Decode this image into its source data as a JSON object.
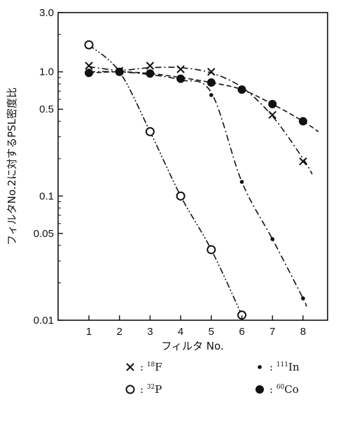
{
  "chart_data": {
    "type": "line",
    "xlabel": "フィルタ No.",
    "ylabel": "フィルタNo.2に対するPSL密度比",
    "y_scale": "log",
    "ylim": [
      0.01,
      3.0
    ],
    "xlim": [
      0.5,
      8.8
    ],
    "x_ticks": [
      "1",
      "2",
      "3",
      "4",
      "5",
      "6",
      "7",
      "8"
    ],
    "y_ticks": [
      {
        "value": 3.0,
        "label": "3.0"
      },
      {
        "value": 1.0,
        "label": "1.0"
      },
      {
        "value": 0.5,
        "label": "0.5"
      },
      {
        "value": 0.1,
        "label": "0.1"
      },
      {
        "value": 0.05,
        "label": "0.05"
      },
      {
        "value": 0.01,
        "label": "0.01"
      }
    ],
    "grid": false,
    "legend_position": "bottom",
    "series": [
      {
        "name": "18F",
        "legend_mass": "18",
        "legend_symbol": "F",
        "marker": "cross",
        "line_style": "dash-dot",
        "points": [
          [
            1,
            1.12
          ],
          [
            2,
            1.02
          ],
          [
            3,
            1.12
          ],
          [
            4,
            1.05
          ],
          [
            5,
            1.0
          ],
          [
            7,
            0.45
          ],
          [
            8,
            0.19
          ]
        ],
        "curve": [
          [
            1,
            1.1
          ],
          [
            2,
            1.03
          ],
          [
            3,
            1.08
          ],
          [
            4,
            1.08
          ],
          [
            5,
            0.98
          ],
          [
            6,
            0.75
          ],
          [
            7,
            0.44
          ],
          [
            8,
            0.2
          ],
          [
            8.3,
            0.15
          ]
        ]
      },
      {
        "name": "32P",
        "legend_mass": "32",
        "legend_symbol": "P",
        "marker": "open-circle",
        "line_style": "dash-dot-dot",
        "points": [
          [
            1,
            1.65
          ],
          [
            3,
            0.33
          ],
          [
            4,
            0.1
          ],
          [
            5,
            0.037
          ],
          [
            6,
            0.011
          ]
        ],
        "curve": [
          [
            1,
            1.65
          ],
          [
            2,
            1.0
          ],
          [
            3,
            0.33
          ],
          [
            4,
            0.1
          ],
          [
            5,
            0.037
          ],
          [
            6,
            0.011
          ]
        ]
      },
      {
        "name": "111In",
        "legend_mass": "111",
        "legend_symbol": "In",
        "marker": "small-dot",
        "line_style": "dash-dot",
        "points": [
          [
            1,
            1.0
          ],
          [
            2,
            1.0
          ],
          [
            3,
            0.95
          ],
          [
            4,
            0.85
          ],
          [
            5,
            0.65
          ],
          [
            6,
            0.13
          ],
          [
            7,
            0.045
          ],
          [
            8,
            0.015
          ]
        ],
        "curve": [
          [
            1,
            1.0
          ],
          [
            2,
            1.0
          ],
          [
            3,
            0.95
          ],
          [
            4,
            0.86
          ],
          [
            5,
            0.68
          ],
          [
            6,
            0.13
          ],
          [
            7,
            0.045
          ],
          [
            8,
            0.015
          ],
          [
            8.1,
            0.013
          ]
        ]
      },
      {
        "name": "60Co",
        "legend_mass": "60",
        "legend_symbol": "Co",
        "marker": "filled-circle",
        "line_style": "dashed",
        "points": [
          [
            1,
            0.98
          ],
          [
            2,
            1.0
          ],
          [
            3,
            0.97
          ],
          [
            4,
            0.88
          ],
          [
            5,
            0.82
          ],
          [
            6,
            0.72
          ],
          [
            7,
            0.55
          ],
          [
            8,
            0.4
          ]
        ],
        "curve": [
          [
            1,
            0.98
          ],
          [
            2,
            1.0
          ],
          [
            3,
            0.97
          ],
          [
            4,
            0.9
          ],
          [
            5,
            0.82
          ],
          [
            6,
            0.72
          ],
          [
            7,
            0.55
          ],
          [
            8,
            0.4
          ],
          [
            8.5,
            0.33
          ]
        ]
      }
    ]
  }
}
